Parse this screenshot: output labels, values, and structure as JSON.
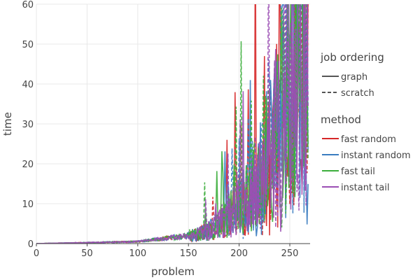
{
  "chart_data": {
    "type": "line",
    "title": "",
    "xlabel": "problem",
    "ylabel": "time",
    "xlim": [
      0,
      270
    ],
    "ylim": [
      0,
      60
    ],
    "x_ticks": [
      "0",
      "50",
      "100",
      "150",
      "200",
      "250"
    ],
    "x_tick_values": [
      0,
      50,
      100,
      150,
      200,
      250
    ],
    "y_ticks": [
      "0",
      "10",
      "20",
      "30",
      "40",
      "50",
      "60"
    ],
    "y_tick_values": [
      0,
      10,
      20,
      30,
      40,
      50,
      60
    ],
    "grid": true,
    "legend_position": "right",
    "legend": {
      "job_ordering": {
        "title": "job ordering",
        "items": [
          {
            "label": "graph",
            "dash": "solid"
          },
          {
            "label": "scratch",
            "dash": "dashed"
          }
        ]
      },
      "method": {
        "title": "method",
        "items": [
          {
            "label": "fast random",
            "color": "#d62728"
          },
          {
            "label": "instant random",
            "color": "#3a7cc0"
          },
          {
            "label": "fast tail",
            "color": "#3cae3c"
          },
          {
            "label": "instant tail",
            "color": "#9b4fb4"
          }
        ]
      }
    },
    "x_range": [
      0,
      268
    ],
    "series": [
      {
        "method": "fast random",
        "ordering": "graph",
        "color": "#d62728",
        "dash": "solid",
        "seed": 11,
        "y_max_at_end": 60
      },
      {
        "method": "fast random",
        "ordering": "scratch",
        "color": "#d62728",
        "dash": "dashed",
        "seed": 23,
        "y_max_at_end": 60
      },
      {
        "method": "instant random",
        "ordering": "graph",
        "color": "#3a7cc0",
        "dash": "solid",
        "seed": 37,
        "y_max_at_end": 60
      },
      {
        "method": "instant random",
        "ordering": "scratch",
        "color": "#3a7cc0",
        "dash": "dashed",
        "seed": 41,
        "y_max_at_end": 60
      },
      {
        "method": "fast tail",
        "ordering": "graph",
        "color": "#3cae3c",
        "dash": "solid",
        "seed": 53,
        "y_max_at_end": 60
      },
      {
        "method": "fast tail",
        "ordering": "scratch",
        "color": "#3cae3c",
        "dash": "dashed",
        "seed": 67,
        "y_max_at_end": 60
      },
      {
        "method": "instant tail",
        "ordering": "graph",
        "color": "#9b4fb4",
        "dash": "solid",
        "seed": 71,
        "y_max_at_end": 60
      },
      {
        "method": "instant tail",
        "ordering": "scratch",
        "color": "#9b4fb4",
        "dash": "dashed",
        "seed": 89,
        "y_max_at_end": 60
      }
    ],
    "annotations": []
  }
}
